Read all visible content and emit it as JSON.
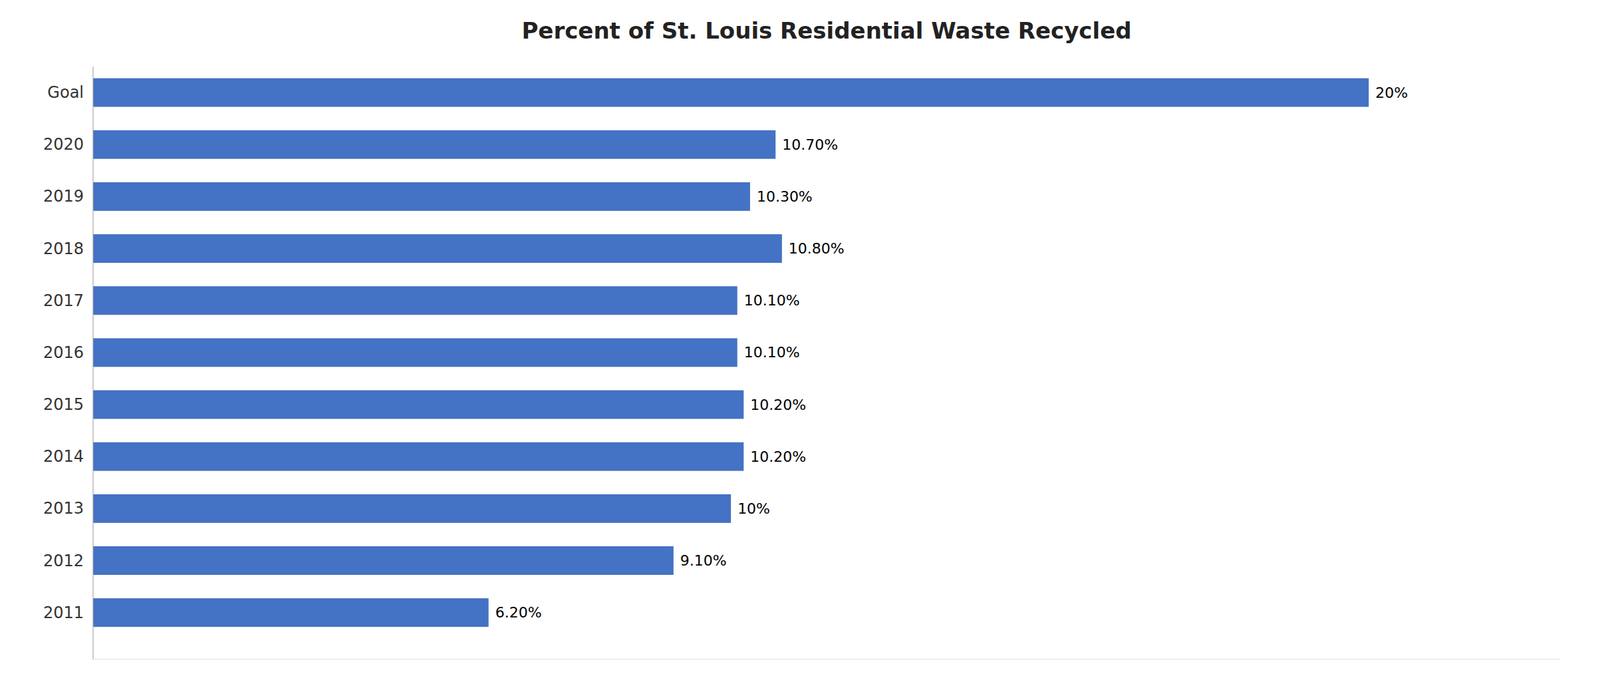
{
  "chart_data": {
    "type": "bar",
    "orientation": "horizontal",
    "title": "Percent of St. Louis Residential Waste Recycled",
    "categories": [
      "Goal",
      "2020",
      "2019",
      "2018",
      "2017",
      "2016",
      "2015",
      "2014",
      "2013",
      "2012",
      "2011"
    ],
    "values": [
      20,
      10.7,
      10.3,
      10.8,
      10.1,
      10.1,
      10.2,
      10.2,
      10.0,
      9.1,
      6.2
    ],
    "value_labels": [
      "20%",
      "10.70%",
      "10.30%",
      "10.80%",
      "10.10%",
      "10.10%",
      "10.20%",
      "10.20%",
      "10%",
      "9.10%",
      "6.20%"
    ],
    "color": "#4472C4",
    "xlim": [
      0,
      23
    ],
    "data_labels": true,
    "tick_labels": "y",
    "grid": false
  }
}
